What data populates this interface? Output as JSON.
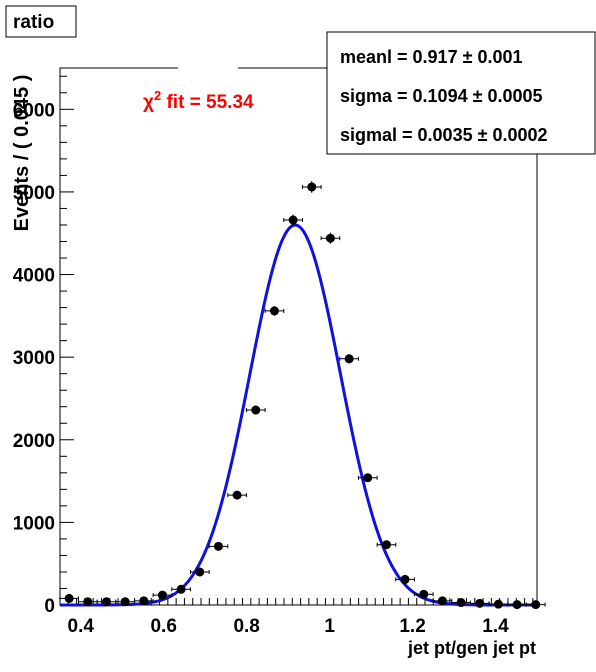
{
  "chart_data": {
    "type": "scatter",
    "title": "ratio",
    "xlabel": "jet pt/gen jet pt",
    "ylabel": "Events / ( 0.045 )",
    "xlim": [
      0.35,
      1.5
    ],
    "ylim": [
      0,
      6500
    ],
    "xticks": [
      0.4,
      0.6,
      0.8,
      1,
      1.2,
      1.4
    ],
    "yticks": [
      0,
      1000,
      2000,
      3000,
      4000,
      5000,
      6000
    ],
    "fit_label": "χ2 fit = 55.34",
    "fit_label_parts": {
      "chi": "χ",
      "sup": "2",
      "rest": " fit = 55.34"
    },
    "stats": [
      {
        "name": "meanl",
        "text": "meanl =  0.917  ± 0.001"
      },
      {
        "name": "sigma",
        "text": "sigma =  0.1094  ± 0.0005"
      },
      {
        "name": "sigmal",
        "text": "sigmal =  0.0035  ± 0.0002"
      }
    ],
    "series": [
      {
        "name": "data",
        "bin_width": 0.045,
        "x": [
          0.372,
          0.417,
          0.462,
          0.507,
          0.552,
          0.597,
          0.642,
          0.687,
          0.732,
          0.777,
          0.822,
          0.867,
          0.912,
          0.957,
          1.002,
          1.047,
          1.092,
          1.137,
          1.182,
          1.227,
          1.272,
          1.317,
          1.362,
          1.407,
          1.452,
          1.497
        ],
        "y": [
          80,
          40,
          40,
          40,
          50,
          120,
          190,
          400,
          710,
          1330,
          2360,
          3560,
          4660,
          5060,
          4440,
          2980,
          1540,
          730,
          310,
          130,
          50,
          30,
          20,
          10,
          5,
          5
        ],
        "yerr": [
          10,
          7,
          7,
          7,
          8,
          12,
          15,
          20,
          27,
          36,
          49,
          60,
          68,
          71,
          67,
          55,
          39,
          27,
          18,
          12,
          8,
          6,
          5,
          4,
          3,
          3
        ]
      }
    ],
    "fit": {
      "color": "#1010e0",
      "model": "gaussian",
      "mean": 0.917,
      "sigma": 0.1094,
      "amplitude": 4600
    },
    "colors": {
      "points": "#000000",
      "fit_label": "#ff0000",
      "fit_line": "#1010e0"
    }
  }
}
